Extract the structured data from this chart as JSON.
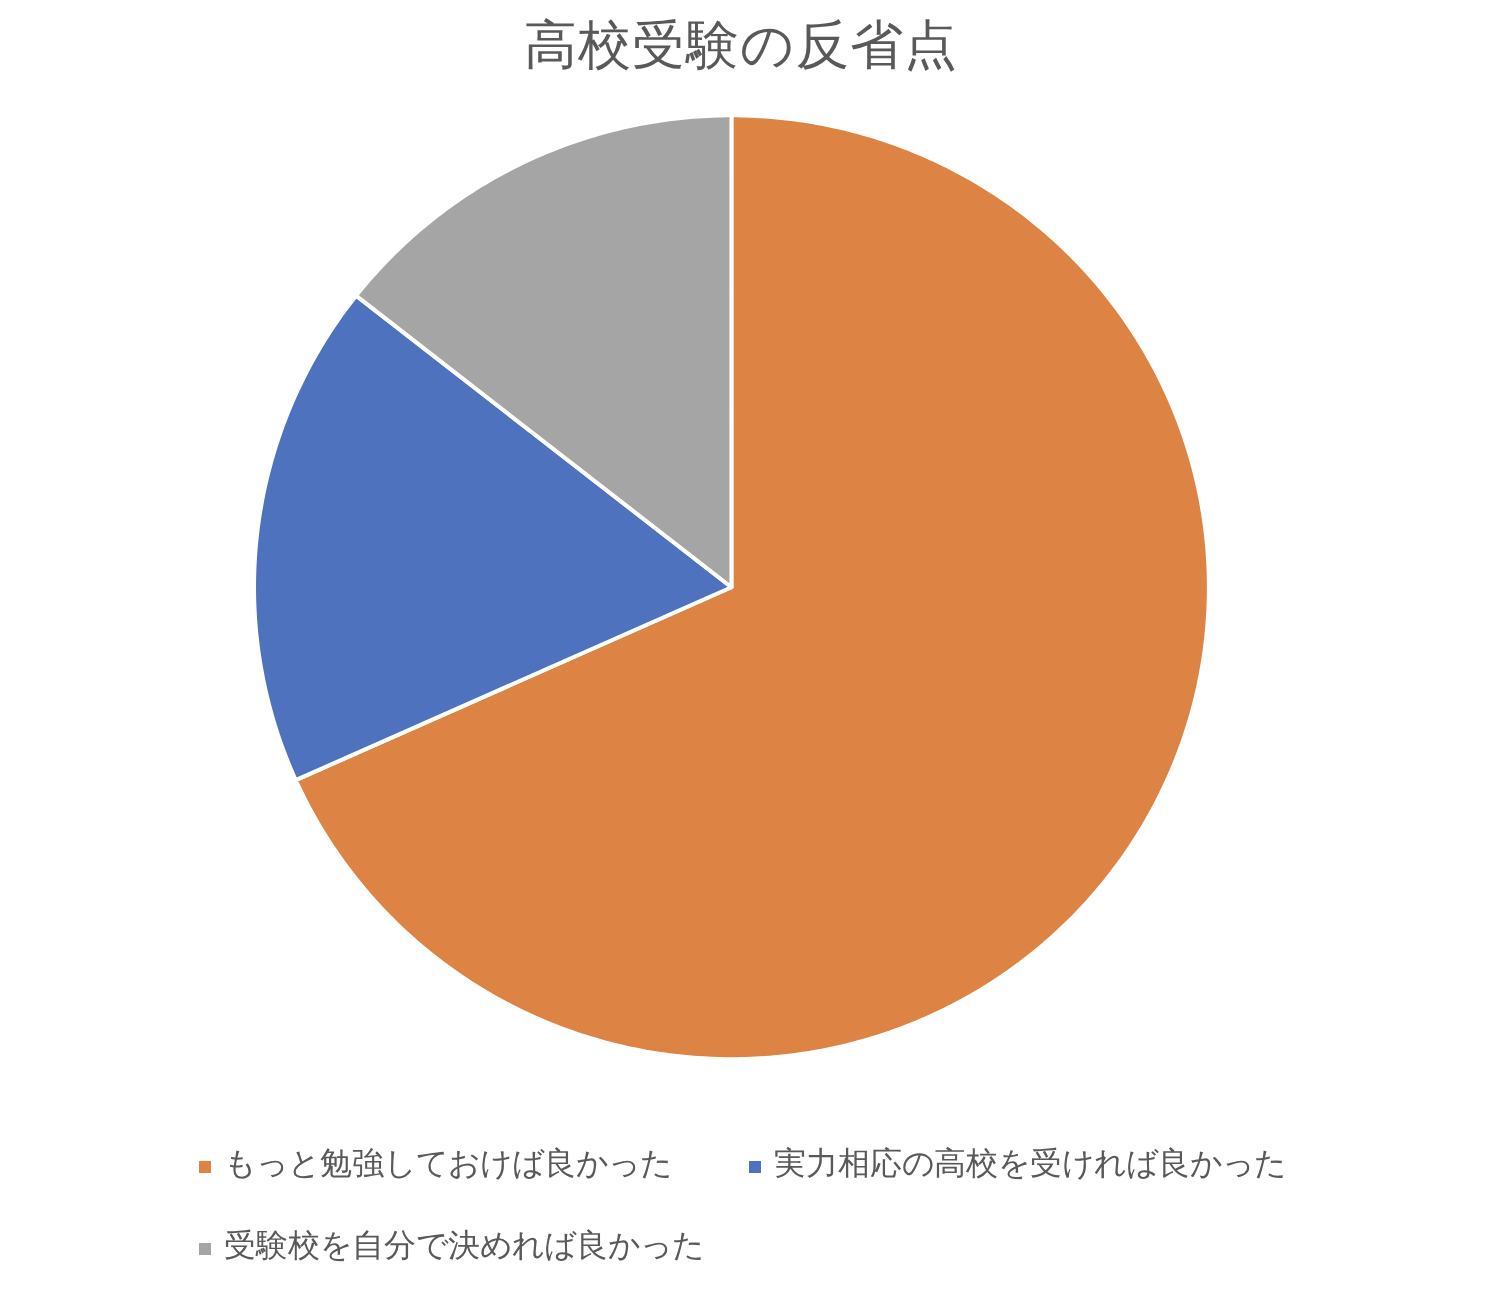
{
  "chart_data": {
    "type": "pie",
    "title": "高校受験の反省点",
    "categories": [
      "もっと勉強しておけば良かった",
      "実力相応の高校を受ければ良かった",
      "受験校を自分で決めれば良かった"
    ],
    "values": [
      68.3,
      17.3,
      14.4
    ],
    "colors": [
      "#dd8344",
      "#4e72be",
      "#a5a5a5"
    ],
    "legend": "bottom"
  }
}
